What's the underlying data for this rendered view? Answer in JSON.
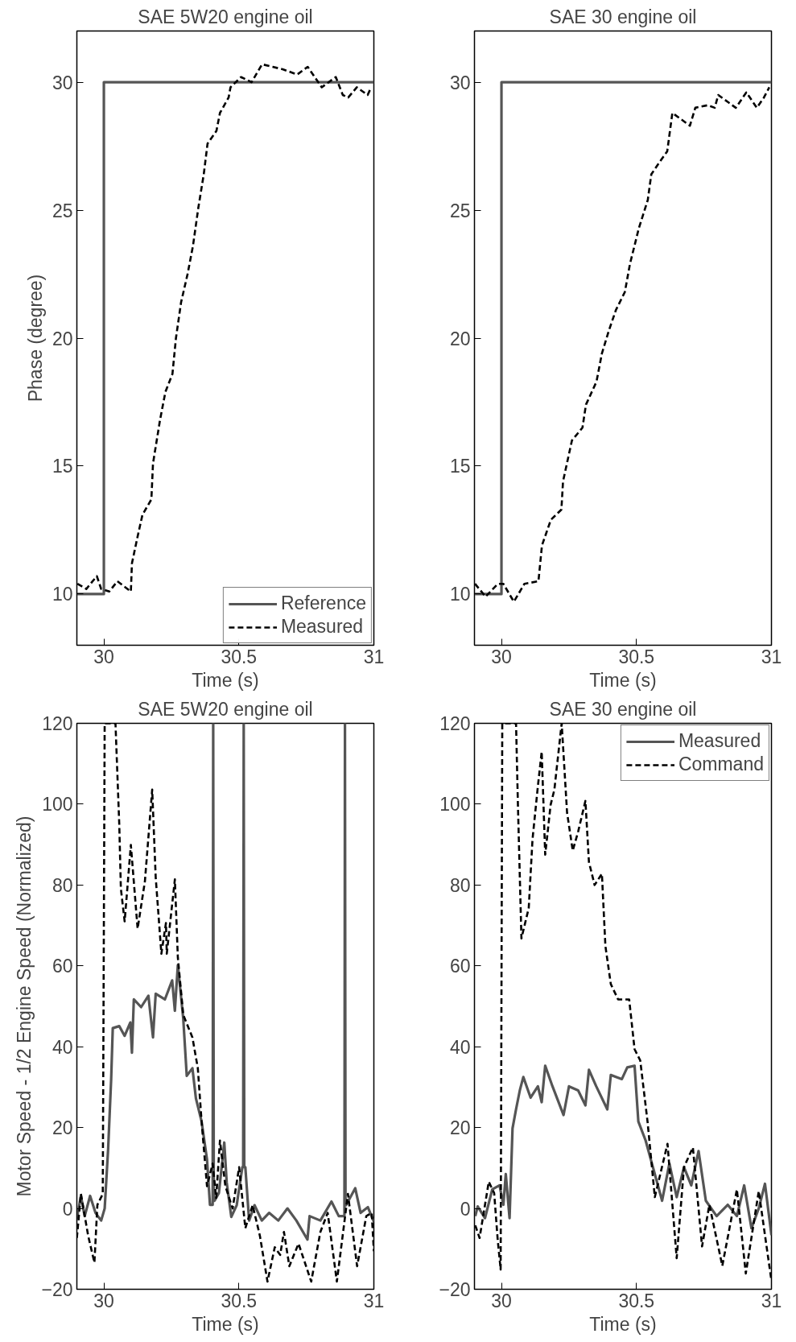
{
  "chart_data": [
    {
      "type": "line",
      "title": "SAE 5W20 engine oil",
      "xlabel": "Time (s)",
      "ylabel": "Phase (degree)",
      "xlim": [
        29.9,
        31
      ],
      "xticks": [
        30,
        30.5,
        31
      ],
      "ylim": [
        8,
        32
      ],
      "yticks": [
        10,
        15,
        20,
        25,
        30
      ],
      "grid": false,
      "legend": "bottom right",
      "series": [
        {
          "name": "Reference",
          "color": "#555555",
          "line_style": "solid",
          "x": [
            29.9,
            30,
            30,
            31
          ],
          "values": [
            10,
            10,
            30,
            30
          ]
        },
        {
          "name": "Measured",
          "color": "#000000",
          "line_style": "dashed",
          "x": [
            29.902,
            29.935,
            29.974,
            29.99,
            30.02,
            30.05,
            30.1,
            30.104,
            30.124,
            30.143,
            30.176,
            30.182,
            30.208,
            30.228,
            30.254,
            30.267,
            30.286,
            30.31,
            30.33,
            30.35,
            30.37,
            30.384,
            30.417,
            30.43,
            30.462,
            30.469,
            30.508,
            30.547,
            30.586,
            30.625,
            30.664,
            30.716,
            30.755,
            30.781,
            30.807,
            30.859,
            30.885,
            30.905,
            30.937,
            30.977,
            30.99
          ],
          "values": [
            10.4,
            10.2,
            10.7,
            10.2,
            10.1,
            10.5,
            10.1,
            11.2,
            12.2,
            13.1,
            13.7,
            15.1,
            16.8,
            17.9,
            18.6,
            20.0,
            21.4,
            22.5,
            23.6,
            25.1,
            26.4,
            27.6,
            28.1,
            28.8,
            29.4,
            29.8,
            30.2,
            30.0,
            30.7,
            30.6,
            30.5,
            30.3,
            30.6,
            30.2,
            29.8,
            30.2,
            29.5,
            29.4,
            29.8,
            29.5,
            29.8
          ]
        }
      ]
    },
    {
      "type": "line",
      "title": "SAE 30 engine oil",
      "xlabel": "Time (s)",
      "xlim": [
        29.9,
        31
      ],
      "xticks": [
        30,
        30.5,
        31
      ],
      "ylim": [
        8,
        32
      ],
      "yticks": [
        10,
        15,
        20,
        25,
        30
      ],
      "grid": false,
      "legend": false,
      "series": [
        {
          "color": "#555555",
          "line_style": "solid",
          "x": [
            29.9,
            30,
            30,
            31
          ],
          "values": [
            10,
            10,
            30,
            30
          ]
        },
        {
          "color": "#000000",
          "line_style": "dashed",
          "x": [
            29.902,
            29.941,
            29.987,
            30.007,
            30.046,
            30.085,
            30.137,
            30.15,
            30.183,
            30.222,
            30.228,
            30.261,
            30.3,
            30.313,
            30.352,
            30.372,
            30.398,
            30.424,
            30.457,
            30.476,
            30.509,
            30.542,
            30.555,
            30.587,
            30.614,
            30.633,
            30.659,
            30.698,
            30.718,
            30.764,
            30.79,
            30.803,
            30.842,
            30.868,
            30.907,
            30.946,
            30.972,
            30.992
          ],
          "values": [
            10.4,
            9.9,
            10.4,
            10.4,
            9.7,
            10.4,
            10.5,
            11.9,
            12.9,
            13.3,
            14.4,
            16.0,
            16.5,
            17.4,
            18.3,
            19.4,
            20.3,
            21.1,
            21.8,
            22.9,
            24.3,
            25.4,
            26.4,
            26.9,
            27.3,
            28.8,
            28.6,
            28.3,
            29.0,
            29.1,
            29.0,
            29.5,
            29.2,
            29.0,
            29.6,
            29.0,
            29.4,
            29.8
          ]
        }
      ]
    },
    {
      "type": "line",
      "title": "SAE 5W20 engine oil",
      "xlabel": "Time (s)",
      "ylabel": "Motor Speed - 1/2 Engine Speed (Normalized)",
      "xlim": [
        29.9,
        31
      ],
      "xticks": [
        30,
        30.5,
        31
      ],
      "ylim": [
        -20,
        120
      ],
      "yticks": [
        -20,
        0,
        20,
        40,
        60,
        80,
        100,
        120
      ],
      "grid": false,
      "legend": false,
      "series": [
        {
          "color": "#555555",
          "line_style": "solid",
          "x": [
            29.9,
            29.915,
            29.929,
            29.949,
            29.969,
            29.99,
            30.003,
            30.016,
            30.027,
            30.033,
            30.057,
            30.077,
            30.098,
            30.104,
            30.111,
            30.138,
            30.165,
            30.182,
            30.192,
            30.226,
            30.253,
            30.263,
            30.274,
            30.294,
            30.307,
            30.328,
            30.341,
            30.362,
            30.382,
            30.393,
            30.403,
            30.405,
            30.407,
            30.41,
            30.426,
            30.446,
            30.455,
            30.472,
            30.492,
            30.513,
            30.516,
            30.518,
            30.52,
            30.524,
            30.538,
            30.558,
            30.585,
            30.612,
            30.646,
            30.68,
            30.713,
            30.754,
            30.762,
            30.802,
            30.843,
            30.87,
            30.891,
            30.893,
            30.895,
            30.897,
            30.931,
            30.951,
            30.978,
            31
          ],
          "values": [
            -2.5,
            3.1,
            -1.9,
            3.1,
            -1.1,
            -3,
            0,
            14.9,
            31.9,
            44.6,
            45.1,
            42.7,
            46,
            38.5,
            51.7,
            49.8,
            52.6,
            42.3,
            53.1,
            51.7,
            56.4,
            48.9,
            60.2,
            47,
            32.8,
            34.7,
            27.2,
            21.5,
            12.1,
            0.9,
            0.9,
            120,
            1.9,
            1.9,
            3.8,
            16.3,
            6.4,
            -2.1,
            0.8,
            10.2,
            10.2,
            120,
            10.2,
            10.2,
            -3,
            0.8,
            -3,
            -1.1,
            -3,
            0,
            -3,
            -7.7,
            -1.9,
            -3,
            1.7,
            -1.9,
            -1.9,
            120,
            0.8,
            0.8,
            5,
            -1.1,
            0.3,
            -3.3
          ]
        },
        {
          "color": "#000000",
          "line_style": "dashed",
          "x": [
            29.9,
            29.915,
            29.942,
            29.965,
            29.976,
            29.996,
            30.003,
            30.043,
            30.057,
            30.063,
            30.077,
            30.1,
            30.125,
            30.152,
            30.179,
            30.192,
            30.213,
            30.23,
            30.233,
            30.263,
            30.274,
            30.294,
            30.328,
            30.348,
            30.362,
            30.382,
            30.403,
            30.416,
            30.43,
            30.45,
            30.477,
            30.501,
            30.524,
            30.551,
            30.578,
            30.606,
            30.633,
            30.653,
            30.667,
            30.687,
            30.721,
            30.768,
            30.802,
            30.829,
            30.863,
            30.904,
            30.938,
            30.972,
            30.992,
            31
          ],
          "values": [
            -7.3,
            3.6,
            -6.8,
            -13.4,
            0.9,
            3.6,
            120,
            120,
            95.1,
            79.1,
            71,
            89.9,
            69.2,
            80.9,
            103.6,
            81.9,
            63,
            70.6,
            63,
            81.4,
            62.1,
            47.9,
            42.3,
            34.7,
            21.5,
            5.5,
            11.1,
            2.6,
            16.8,
            5.5,
            0,
            10.2,
            -4.9,
            0.8,
            -6.8,
            -18.1,
            -9.6,
            -11.5,
            -5.8,
            -14.3,
            -8.7,
            -18.1,
            -5.8,
            -1.1,
            -18.1,
            3.6,
            -14.3,
            -1.9,
            -1.1,
            -10.6
          ]
        }
      ]
    },
    {
      "type": "line",
      "title": "SAE 30 engine oil",
      "xlabel": "Time (s)",
      "xlim": [
        29.9,
        31
      ],
      "xticks": [
        30,
        30.5,
        31
      ],
      "ylim": [
        -20,
        120
      ],
      "yticks": [
        -20,
        0,
        20,
        40,
        60,
        80,
        100,
        120
      ],
      "grid": false,
      "legend": "top right",
      "series": [
        {
          "name": "Measured",
          "color": "#555555",
          "line_style": "solid",
          "x": [
            29.903,
            29.912,
            29.939,
            29.966,
            29.993,
            30.007,
            30.016,
            30.03,
            30.041,
            30.054,
            30.068,
            30.081,
            30.108,
            30.135,
            30.149,
            30.162,
            30.189,
            30.23,
            30.25,
            30.284,
            30.311,
            30.324,
            30.351,
            30.392,
            30.405,
            30.446,
            30.466,
            30.493,
            30.507,
            30.534,
            30.561,
            30.595,
            30.622,
            30.649,
            30.676,
            30.703,
            30.73,
            30.757,
            30.797,
            30.838,
            30.872,
            30.899,
            30.926,
            30.953,
            30.976,
            31
          ],
          "values": [
            -1.9,
            0.5,
            -2.4,
            4.7,
            5.7,
            0.9,
            8.5,
            -2.4,
            19.8,
            24.5,
            29.2,
            32.5,
            27.4,
            30.2,
            26.3,
            35.3,
            30.2,
            23.1,
            30.2,
            29.2,
            25.5,
            34.3,
            30.2,
            24.5,
            33,
            32,
            34.9,
            35.3,
            21.5,
            16.8,
            10.2,
            1.9,
            11.1,
            2.8,
            10.2,
            5.7,
            14.2,
            1.9,
            -1.9,
            0.9,
            -1.9,
            5.7,
            -4.9,
            0,
            6.1,
            -6.6
          ]
        },
        {
          "name": "Command",
          "color": "#000000",
          "line_style": "dashed",
          "x": [
            29.903,
            29.919,
            29.953,
            29.973,
            29.986,
            29.997,
            30.003,
            30.054,
            30.061,
            30.074,
            30.101,
            30.115,
            30.135,
            30.149,
            30.162,
            30.182,
            30.196,
            30.223,
            30.243,
            30.264,
            30.284,
            30.311,
            30.324,
            30.345,
            30.372,
            30.385,
            30.405,
            30.432,
            30.473,
            30.493,
            30.514,
            30.541,
            30.568,
            30.615,
            30.649,
            30.676,
            30.709,
            30.743,
            30.77,
            30.818,
            30.872,
            30.905,
            30.953,
            30.98,
            31
          ],
          "values": [
            -4.2,
            -7.3,
            6.6,
            3.8,
            -7.7,
            -15.1,
            120,
            120,
            99.8,
            66.8,
            74.3,
            91.3,
            104.5,
            113,
            87.5,
            99.8,
            103.6,
            120,
            97.9,
            88.5,
            93.2,
            100.8,
            85.7,
            80,
            82.8,
            64.9,
            55.5,
            51.7,
            51.7,
            39.4,
            36.6,
            21.5,
            2.8,
            16,
            -12.3,
            10.2,
            15.1,
            -9.4,
            0.9,
            -14.2,
            4.7,
            -16.1,
            4.3,
            -8.5,
            -17.9
          ]
        }
      ]
    }
  ]
}
